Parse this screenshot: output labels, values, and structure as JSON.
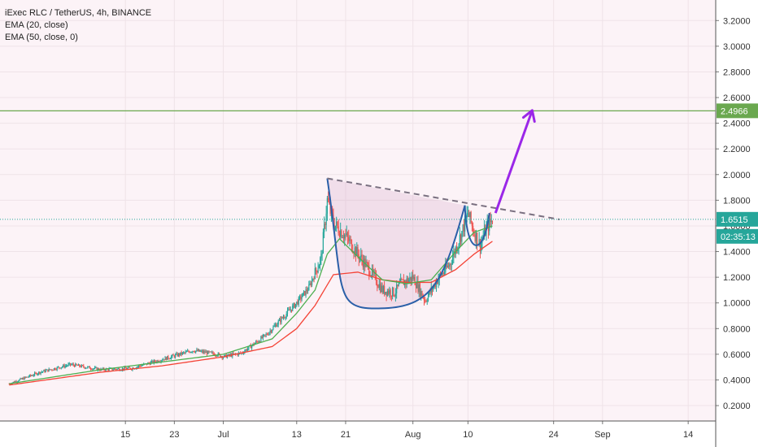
{
  "legend": {
    "title": "iExec RLC / TetherUS, 4h, BINANCE",
    "ema20": "EMA (20, close)",
    "ema50": "EMA (50, close, 0)"
  },
  "colors": {
    "background": "#fcf3f7",
    "grid": "#efe3e8",
    "up": "#26a69a",
    "down": "#ef5350",
    "ema20": "#4caf50",
    "ema50": "#f44336",
    "target": "#6aa84f",
    "current": "#26a69a",
    "cup": "#2a5fa8",
    "arrow": "#9b27e8",
    "trendline": "#7a7080"
  },
  "badges": {
    "target": "2.4966",
    "current": "1.6515",
    "countdown": "02:35:13"
  },
  "chart_data": {
    "type": "candlestick",
    "title": "iExec RLC / TetherUS, 4h, BINANCE",
    "ylim": [
      0.08,
      3.36
    ],
    "y_ticks": [
      "3.2000",
      "3.0000",
      "2.8000",
      "2.6000",
      "2.4000",
      "2.2000",
      "2.0000",
      "1.8000",
      "1.6000",
      "1.4000",
      "1.2000",
      "1.0000",
      "0.8000",
      "0.6000",
      "0.4000",
      "0.2000"
    ],
    "x_ticks": [
      "15",
      "23",
      "Jul",
      "13",
      "21",
      "Aug",
      "10",
      "24",
      "Sep",
      "14"
    ],
    "x_tick_days": [
      -16,
      -8,
      0,
      12,
      20,
      31,
      40,
      54,
      62,
      76
    ],
    "date_axis": "day of year 2020, Jul 1 = 0",
    "price_path": [
      [
        -35,
        0.37
      ],
      [
        -30,
        0.46
      ],
      [
        -25,
        0.52
      ],
      [
        -20,
        0.48
      ],
      [
        -15,
        0.49
      ],
      [
        -10,
        0.56
      ],
      [
        -5,
        0.63
      ],
      [
        -1,
        0.6
      ],
      [
        0,
        0.58
      ],
      [
        3,
        0.61
      ],
      [
        7,
        0.75
      ],
      [
        10,
        0.9
      ],
      [
        12,
        1.0
      ],
      [
        14,
        1.12
      ],
      [
        16,
        1.35
      ],
      [
        17,
        1.8
      ],
      [
        18,
        1.62
      ],
      [
        20,
        1.52
      ],
      [
        22,
        1.38
      ],
      [
        24,
        1.25
      ],
      [
        26,
        1.1
      ],
      [
        28,
        1.08
      ],
      [
        29,
        1.15
      ],
      [
        31,
        1.2
      ],
      [
        33,
        1.02
      ],
      [
        35,
        1.18
      ],
      [
        37,
        1.3
      ],
      [
        39,
        1.55
      ],
      [
        40,
        1.7
      ],
      [
        41,
        1.55
      ],
      [
        42,
        1.45
      ],
      [
        43,
        1.58
      ],
      [
        44,
        1.65
      ]
    ],
    "ema20": [
      [
        -35,
        0.37
      ],
      [
        -20,
        0.48
      ],
      [
        -10,
        0.54
      ],
      [
        0,
        0.6
      ],
      [
        8,
        0.72
      ],
      [
        12,
        0.92
      ],
      [
        15,
        1.1
      ],
      [
        17,
        1.38
      ],
      [
        19,
        1.5
      ],
      [
        22,
        1.36
      ],
      [
        26,
        1.18
      ],
      [
        30,
        1.15
      ],
      [
        34,
        1.18
      ],
      [
        38,
        1.4
      ],
      [
        41,
        1.55
      ],
      [
        44,
        1.6
      ]
    ],
    "ema50": [
      [
        -35,
        0.36
      ],
      [
        -20,
        0.46
      ],
      [
        -10,
        0.51
      ],
      [
        0,
        0.58
      ],
      [
        8,
        0.66
      ],
      [
        12,
        0.8
      ],
      [
        15,
        0.98
      ],
      [
        18,
        1.22
      ],
      [
        22,
        1.24
      ],
      [
        26,
        1.18
      ],
      [
        30,
        1.16
      ],
      [
        34,
        1.16
      ],
      [
        38,
        1.26
      ],
      [
        41,
        1.38
      ],
      [
        44,
        1.48
      ]
    ],
    "annotations": {
      "target_level": 2.4966,
      "current_level": 1.6515,
      "cup_handle": {
        "left_rim": [
          17,
          1.97
        ],
        "bottom": [
          27,
          0.96
        ],
        "right_rim": [
          39.5,
          1.76
        ],
        "handle_low": [
          41.5,
          1.4
        ],
        "handle_end": [
          43.5,
          1.7
        ]
      },
      "resistance_line": [
        [
          17,
          1.97
        ],
        [
          55,
          1.65
        ]
      ],
      "arrow": [
        [
          44.5,
          1.7
        ],
        [
          50.5,
          2.5
        ]
      ]
    }
  }
}
